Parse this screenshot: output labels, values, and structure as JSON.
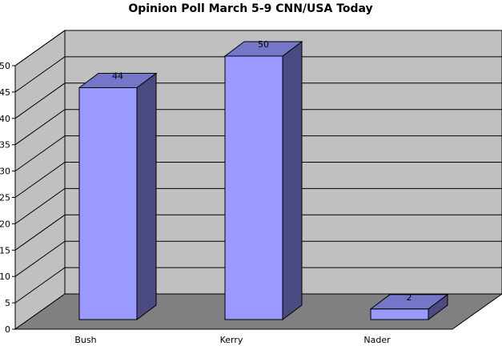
{
  "chart_data": {
    "type": "bar",
    "title": "Opinion Poll March 5-9 CNN/USA Today",
    "categories": [
      "Bush",
      "Kerry",
      "Nader"
    ],
    "values": [
      44,
      50,
      2
    ],
    "xlabel": "",
    "ylabel": "",
    "ylim": [
      0,
      50
    ],
    "yticks": [
      0,
      5,
      10,
      15,
      20,
      25,
      30,
      35,
      40,
      45,
      50
    ],
    "grid": true,
    "legend": "none",
    "three_d": true,
    "colors": {
      "bar_front": "#9999ff",
      "bar_side": "#4b4b82",
      "bar_top": "#7676c8",
      "wall": "#c0c0c0",
      "floor": "#808080",
      "gridline": "#000000"
    }
  }
}
